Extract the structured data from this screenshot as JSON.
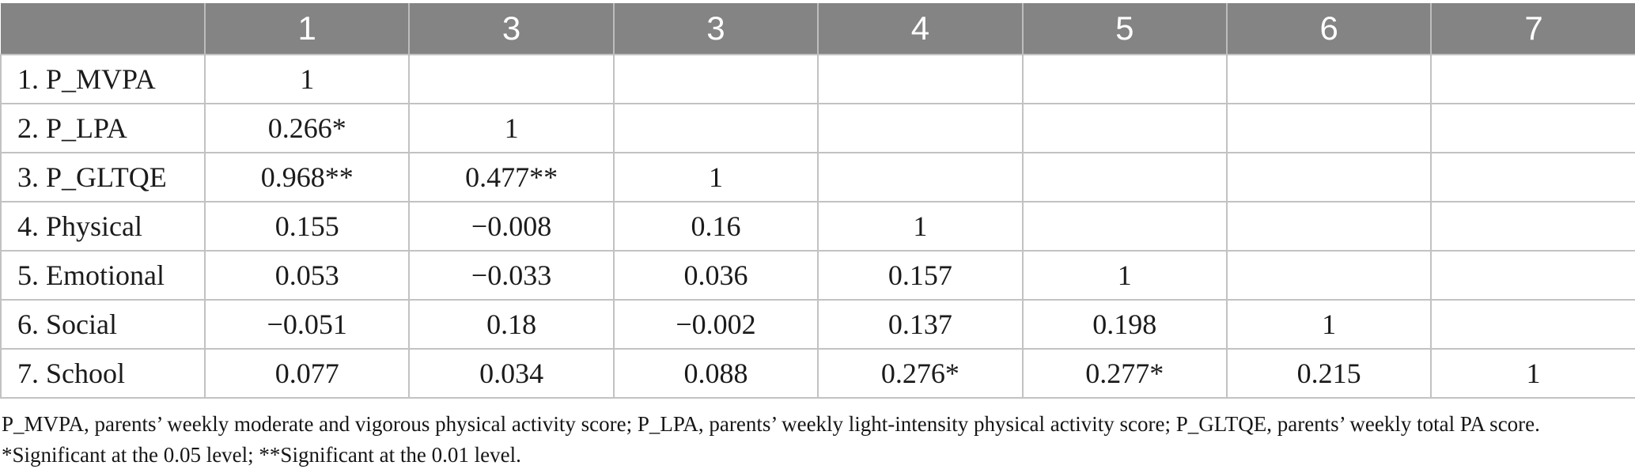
{
  "colors": {
    "header_bg": "#848484",
    "header_text": "#ffffff",
    "body_text": "#1b1b1b",
    "border": "#c2c2c2",
    "page_bg": "#ffffff"
  },
  "table": {
    "header": [
      "",
      "1",
      "3",
      "3",
      "4",
      "5",
      "6",
      "7"
    ],
    "rows": [
      {
        "label": "1. P_MVPA",
        "values": [
          "1",
          "",
          "",
          "",
          "",
          "",
          ""
        ]
      },
      {
        "label": "2. P_LPA",
        "values": [
          "0.266*",
          "1",
          "",
          "",
          "",
          "",
          ""
        ]
      },
      {
        "label": "3. P_GLTQE",
        "values": [
          "0.968**",
          "0.477**",
          "1",
          "",
          "",
          "",
          ""
        ]
      },
      {
        "label": "4. Physical",
        "values": [
          "0.155",
          "−0.008",
          "0.16",
          "1",
          "",
          "",
          ""
        ]
      },
      {
        "label": "5. Emotional",
        "values": [
          "0.053",
          "−0.033",
          "0.036",
          "0.157",
          "1",
          "",
          ""
        ]
      },
      {
        "label": "6. Social",
        "values": [
          "−0.051",
          "0.18",
          "−0.002",
          "0.137",
          "0.198",
          "1",
          ""
        ]
      },
      {
        "label": "7. School",
        "values": [
          "0.077",
          "0.034",
          "0.088",
          "0.276*",
          "0.277*",
          "0.215",
          "1"
        ]
      }
    ]
  },
  "footnotes": {
    "line1": "P_MVPA, parents’ weekly moderate and vigorous physical activity score; P_LPA, parents’ weekly light-intensity physical activity score; P_GLTQE, parents’ weekly total PA score.",
    "line2": "*Significant at the 0.05 level; **Significant at the 0.01 level."
  }
}
